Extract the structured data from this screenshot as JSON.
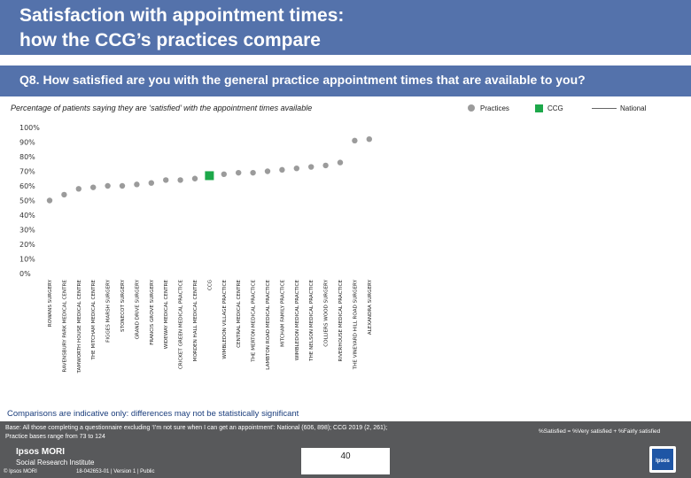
{
  "header": {
    "title_line1": "Satisfaction with appointment times:",
    "title_line2": "how the CCG’s practices compare"
  },
  "question": "Q8. How satisfied are you with the general practice appointment times that are available to you?",
  "subtitle": "Percentage of patients saying they are ‘satisfied’ with the appointment times available",
  "legend": {
    "practices": "Practices",
    "ccg": "CCG",
    "national": "National"
  },
  "colors": {
    "banner": "#5472ab",
    "practice": "#9b9b9b",
    "ccg": "#1da84a",
    "footer": "#58595b"
  },
  "chart_data": {
    "type": "scatter",
    "title": "",
    "xlabel": "",
    "ylabel": "",
    "ylim": [
      0,
      100
    ],
    "y_ticks": [
      "0%",
      "10%",
      "20%",
      "30%",
      "40%",
      "50%",
      "60%",
      "70%",
      "80%",
      "90%",
      "100%"
    ],
    "grid": false,
    "legend_position": "top-right",
    "categories": [
      "ROWANS SURGERY",
      "RAVENSBURY PARK MEDICAL CENTRE",
      "TAMWORTH HOUSE MEDICAL CENTRE",
      "THE MITCHAM MEDICAL CENTRE",
      "FIGGES MARSH SURGERY",
      "STONECOT SURGERY",
      "GRAND DRIVE SURGERY",
      "FRANCIS GROVE SURGERY",
      "WIDEWAY MEDICAL CENTRE",
      "CRICKET GREEN MEDICAL PRACTICE",
      "MORDEN HALL MEDICAL CENTRE",
      "CCG",
      "WIMBLEDON VILLAGE PRACTICE",
      "CENTRAL MEDICAL CENTRE",
      "THE MERTON MEDICAL PRACTICE",
      "LAMBTON ROAD MEDICAL PRACTICE",
      "MITCHAM FAMILY PRACTICE",
      "WIMBLEDON MEDICAL PRACTICE",
      "THE NELSON MEDICAL PRACTICE",
      "COLLIERS WOOD SURGERY",
      "RIVERHOUSE MEDICAL PRACTICE",
      "THE VINEYARD HILL ROAD SURGERY",
      "ALEXANDRA SURGERY"
    ],
    "series": [
      {
        "name": "Practices",
        "values": [
          50,
          54,
          58,
          59,
          60,
          60,
          61,
          62,
          64,
          64,
          65,
          null,
          68,
          69,
          69,
          70,
          71,
          72,
          73,
          74,
          76,
          91,
          92
        ]
      },
      {
        "name": "CCG",
        "values": [
          null,
          null,
          null,
          null,
          null,
          null,
          null,
          null,
          null,
          null,
          null,
          67,
          null,
          null,
          null,
          null,
          null,
          null,
          null,
          null,
          null,
          null,
          null
        ]
      }
    ]
  },
  "note": "Comparisons are indicative only: differences may not be statistically significant",
  "footer": {
    "base_line1": "Base: All those completing a questionnaire excluding ‘I’m not sure when I can get an appointment’: National (606, 898); CCG 2019 (2, 261);",
    "base_line2": "Practice bases range from 73 to 124",
    "definition": "%Satisfied = %Very satisfied + %Fairly satisfied",
    "logo_line1": "Ipsos MORI",
    "logo_line2": "Social Research Institute",
    "copyright": "© Ipsos MORI",
    "job": "18-042653-01 | Version 1 | Public",
    "page_number": "40",
    "logo_text": "Ipsos"
  }
}
